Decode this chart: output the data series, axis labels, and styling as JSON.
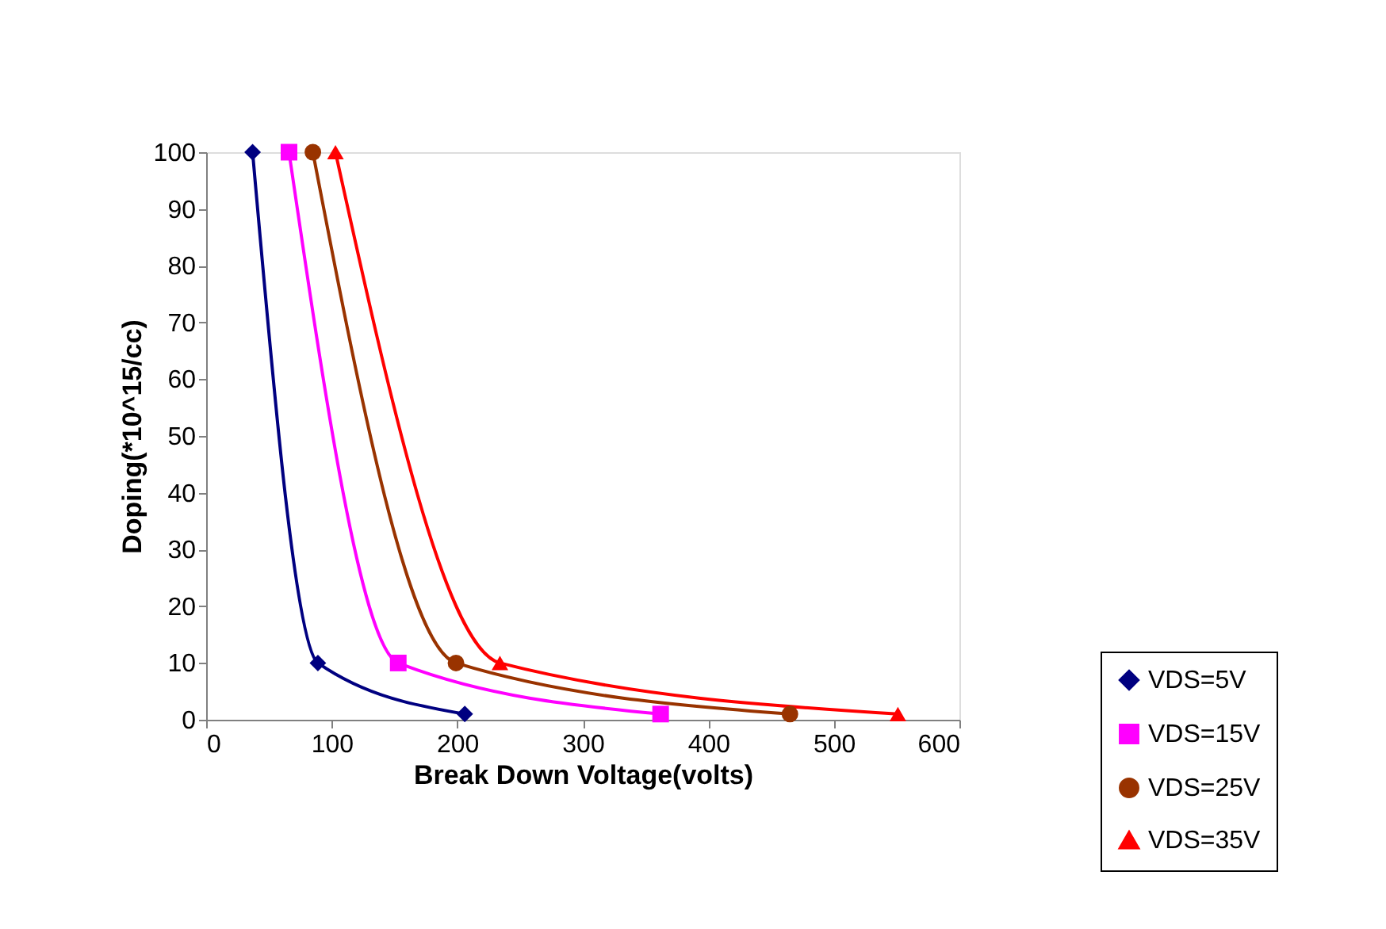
{
  "chart_data": {
    "type": "line",
    "xlabel": "Break Down Voltage(volts)",
    "ylabel": "Doping(*10^15/cc)",
    "xlim": [
      0,
      600
    ],
    "xticks": [
      0,
      100,
      200,
      300,
      400,
      500,
      600
    ],
    "ylim": [
      0,
      100
    ],
    "yticks": [
      0,
      10,
      20,
      30,
      40,
      50,
      60,
      70,
      80,
      90,
      100
    ],
    "grid": false,
    "legend": "bottom right",
    "series": [
      {
        "name": "VDS=5V",
        "color": "#000080",
        "marker": "diamond",
        "x": [
          37,
          89,
          206
        ],
        "values": [
          100,
          10,
          1
        ]
      },
      {
        "name": "VDS=15V",
        "color": "#ff00ff",
        "marker": "square",
        "x": [
          66,
          153,
          362
        ],
        "values": [
          100,
          10,
          1
        ]
      },
      {
        "name": "VDS=25V",
        "color": "#993300",
        "marker": "circle",
        "x": [
          85,
          199,
          465
        ],
        "values": [
          100,
          10,
          1
        ]
      },
      {
        "name": "VDS=35V",
        "color": "#ff0000",
        "marker": "triangle",
        "x": [
          103,
          234,
          551
        ],
        "values": [
          100,
          10,
          1
        ]
      }
    ]
  }
}
